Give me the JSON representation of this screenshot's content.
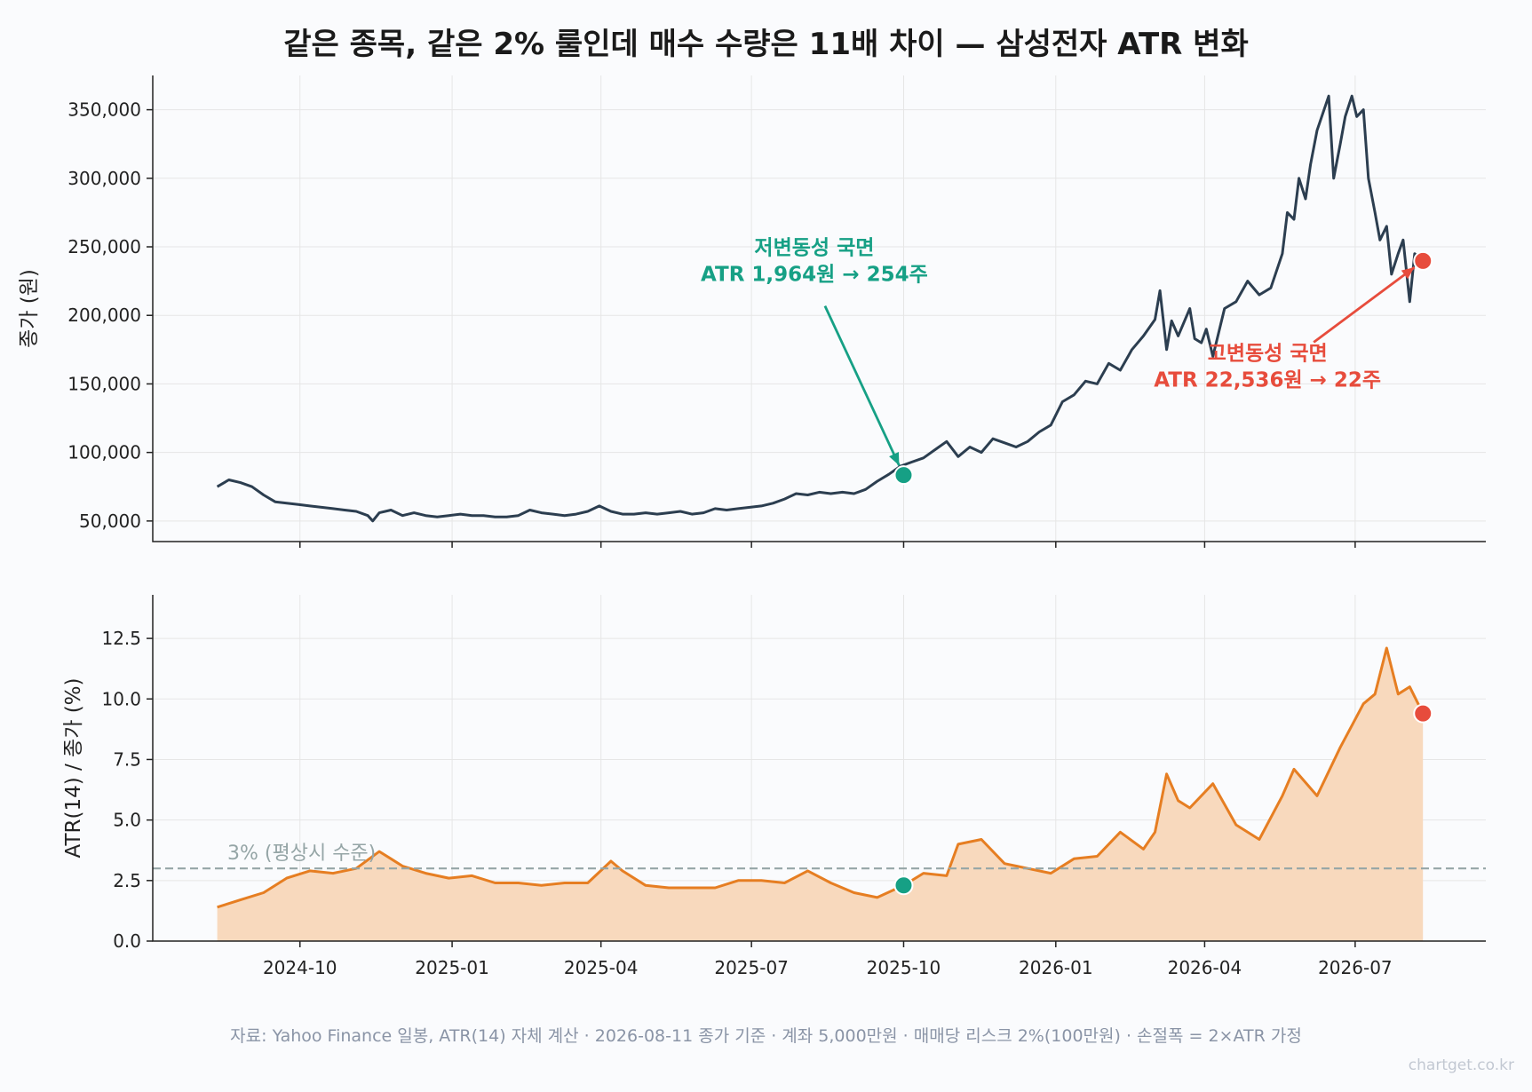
{
  "title": "같은 종목, 같은 2% 룰인데 매수 수량은 11배 차이 — 삼성전자 ATR 변화",
  "source_note": "자료: Yahoo Finance 일봉, ATR(14) 자체 계산 · 2026-08-11 종가 기준 · 계좌 5,000만원 · 매매당 리스크 2%(100만원) · 손절폭 = 2×ATR 가정",
  "watermark": "chartget.co.kr",
  "colors": {
    "price_line": "#2c3e50",
    "atr_line": "#e67e22",
    "atr_fill": "#f8d9bd",
    "low_vol": "#16a085",
    "high_vol": "#e74c3c",
    "reference_line": "#95a5a6"
  },
  "chart_data": [
    {
      "type": "line",
      "ylabel": "종가 (원)",
      "ylim": [
        35000,
        375000
      ],
      "yticks": [
        50000,
        100000,
        150000,
        200000,
        250000,
        300000,
        350000
      ],
      "ytick_labels": [
        "50,000",
        "100,000",
        "150,000",
        "200,000",
        "250,000",
        "300,000",
        "350,000"
      ],
      "grid": true,
      "series": [
        {
          "x": [
            "2024-08-12",
            "2024-08-19",
            "2024-08-26",
            "2024-09-02",
            "2024-09-09",
            "2024-09-16",
            "2024-09-23",
            "2024-09-30",
            "2024-10-07",
            "2024-10-14",
            "2024-10-21",
            "2024-10-28",
            "2024-11-04",
            "2024-11-11",
            "2024-11-14",
            "2024-11-18",
            "2024-11-25",
            "2024-12-02",
            "2024-12-09",
            "2024-12-16",
            "2024-12-23",
            "2024-12-30",
            "2025-01-06",
            "2025-01-13",
            "2025-01-20",
            "2025-01-27",
            "2025-02-03",
            "2025-02-10",
            "2025-02-17",
            "2025-02-24",
            "2025-03-03",
            "2025-03-10",
            "2025-03-17",
            "2025-03-24",
            "2025-03-31",
            "2025-04-07",
            "2025-04-14",
            "2025-04-21",
            "2025-04-28",
            "2025-05-05",
            "2025-05-12",
            "2025-05-19",
            "2025-05-26",
            "2025-06-02",
            "2025-06-09",
            "2025-06-16",
            "2025-06-23",
            "2025-06-30",
            "2025-07-07",
            "2025-07-14",
            "2025-07-21",
            "2025-07-28",
            "2025-08-04",
            "2025-08-11",
            "2025-08-18",
            "2025-08-25",
            "2025-09-01",
            "2025-09-08",
            "2025-09-15",
            "2025-09-22",
            "2025-09-29",
            "2025-10-06",
            "2025-10-13",
            "2025-10-20",
            "2025-10-27",
            "2025-11-03",
            "2025-11-10",
            "2025-11-17",
            "2025-11-24",
            "2025-12-01",
            "2025-12-08",
            "2025-12-15",
            "2025-12-22",
            "2025-12-29",
            "2026-01-05",
            "2026-01-12",
            "2026-01-19",
            "2026-01-26",
            "2026-02-02",
            "2026-02-09",
            "2026-02-16",
            "2026-02-23",
            "2026-03-02",
            "2026-03-05",
            "2026-03-09",
            "2026-03-12",
            "2026-03-16",
            "2026-03-23",
            "2026-03-26",
            "2026-03-30",
            "2026-04-02",
            "2026-04-06",
            "2026-04-13",
            "2026-04-20",
            "2026-04-27",
            "2026-05-04",
            "2026-05-11",
            "2026-05-18",
            "2026-05-21",
            "2026-05-25",
            "2026-05-28",
            "2026-06-01",
            "2026-06-04",
            "2026-06-08",
            "2026-06-15",
            "2026-06-18",
            "2026-06-22",
            "2026-06-25",
            "2026-06-29",
            "2026-07-02",
            "2026-07-06",
            "2026-07-09",
            "2026-07-13",
            "2026-07-16",
            "2026-07-20",
            "2026-07-23",
            "2026-07-27",
            "2026-07-30",
            "2026-08-03",
            "2026-08-06",
            "2026-08-11"
          ],
          "y": [
            75000,
            80000,
            78000,
            75000,
            69000,
            64000,
            63000,
            62000,
            61000,
            60000,
            59000,
            58000,
            57000,
            54000,
            50000,
            56000,
            58000,
            54000,
            56000,
            54000,
            53000,
            54000,
            55000,
            54000,
            54000,
            53000,
            53000,
            54000,
            58000,
            56000,
            55000,
            54000,
            55000,
            57000,
            61000,
            57000,
            55000,
            55000,
            56000,
            55000,
            56000,
            57000,
            55000,
            56000,
            59000,
            58000,
            59000,
            60000,
            61000,
            63000,
            66000,
            70000,
            69000,
            71000,
            70000,
            71000,
            70000,
            73000,
            79000,
            84000,
            90000,
            93000,
            96000,
            102000,
            108000,
            97000,
            104000,
            100000,
            110000,
            107000,
            104000,
            108000,
            115000,
            120000,
            137000,
            142000,
            152000,
            150000,
            165000,
            160000,
            175000,
            185000,
            197000,
            218000,
            175000,
            196000,
            185000,
            205000,
            183000,
            180000,
            190000,
            170000,
            205000,
            210000,
            225000,
            215000,
            220000,
            245000,
            275000,
            270000,
            300000,
            285000,
            310000,
            335000,
            360000,
            300000,
            325000,
            345000,
            360000,
            345000,
            350000,
            300000,
            275000,
            255000,
            265000,
            230000,
            245000,
            255000,
            210000,
            245000,
            239700
          ],
          "markers": [
            {
              "x": "2025-10-01",
              "y": 83500,
              "color_key": "low_vol"
            },
            {
              "x": "2026-08-11",
              "y": 239700,
              "color_key": "high_vol"
            }
          ]
        }
      ],
      "annotations": [
        {
          "line1": "저변동성 국면",
          "line2": "ATR 1,964원 → 254주",
          "color_key": "low_vol",
          "x": "2025-08-08",
          "y": 225000,
          "arrow_to": {
            "x": "2025-10-01",
            "y": 83500
          }
        },
        {
          "line1": "고변동성 국면",
          "line2": "ATR 22,536원 → 22주",
          "color_key": "high_vol",
          "x": "2026-05-09",
          "y": 148000,
          "arrow_to": {
            "x": "2026-08-11",
            "y": 239700
          }
        }
      ]
    },
    {
      "type": "area",
      "ylabel": "ATR(14) / 종가 (%)",
      "ylim": [
        0,
        14.3
      ],
      "yticks": [
        0,
        2.5,
        5,
        7.5,
        10,
        12.5
      ],
      "ytick_labels": [
        "0.0",
        "2.5",
        "5.0",
        "7.5",
        "10.0",
        "12.5"
      ],
      "xticks": [
        "2024-10-01",
        "2025-01-01",
        "2025-04-01",
        "2025-07-01",
        "2025-10-01",
        "2026-01-01",
        "2026-04-01",
        "2026-07-01"
      ],
      "xtick_labels": [
        "2024-10",
        "2025-01",
        "2025-04",
        "2025-07",
        "2025-10",
        "2026-01",
        "2026-04",
        "2026-07"
      ],
      "grid": true,
      "reference_line": {
        "y": 3.0,
        "label": "3% (평상시 수준)"
      },
      "series": [
        {
          "x": [
            "2024-08-12",
            "2024-08-26",
            "2024-09-09",
            "2024-09-23",
            "2024-10-07",
            "2024-10-21",
            "2024-11-04",
            "2024-11-18",
            "2024-11-25",
            "2024-12-02",
            "2024-12-16",
            "2024-12-30",
            "2025-01-13",
            "2025-01-27",
            "2025-02-10",
            "2025-02-24",
            "2025-03-10",
            "2025-03-24",
            "2025-04-07",
            "2025-04-14",
            "2025-04-28",
            "2025-05-12",
            "2025-05-26",
            "2025-06-09",
            "2025-06-23",
            "2025-07-07",
            "2025-07-21",
            "2025-08-04",
            "2025-08-18",
            "2025-09-01",
            "2025-09-15",
            "2025-10-01",
            "2025-10-13",
            "2025-10-27",
            "2025-11-03",
            "2025-11-17",
            "2025-12-01",
            "2025-12-15",
            "2025-12-29",
            "2026-01-12",
            "2026-01-26",
            "2026-02-09",
            "2026-02-23",
            "2026-03-02",
            "2026-03-09",
            "2026-03-16",
            "2026-03-23",
            "2026-04-06",
            "2026-04-20",
            "2026-05-04",
            "2026-05-18",
            "2026-05-25",
            "2026-06-08",
            "2026-06-22",
            "2026-07-06",
            "2026-07-13",
            "2026-07-20",
            "2026-07-27",
            "2026-08-03",
            "2026-08-11"
          ],
          "y": [
            1.4,
            1.7,
            2.0,
            2.6,
            2.9,
            2.8,
            3.0,
            3.7,
            3.4,
            3.1,
            2.8,
            2.6,
            2.7,
            2.4,
            2.4,
            2.3,
            2.4,
            2.4,
            3.3,
            2.9,
            2.3,
            2.2,
            2.2,
            2.2,
            2.5,
            2.5,
            2.4,
            2.9,
            2.4,
            2.0,
            1.8,
            2.3,
            2.8,
            2.7,
            4.0,
            4.2,
            3.2,
            3.0,
            2.8,
            3.4,
            3.5,
            4.5,
            3.8,
            4.5,
            6.9,
            5.8,
            5.5,
            6.5,
            4.8,
            4.2,
            6.0,
            7.1,
            6.0,
            8.0,
            9.8,
            10.2,
            12.1,
            10.2,
            10.5,
            9.4
          ],
          "markers": [
            {
              "x": "2025-10-01",
              "y": 2.3,
              "color_key": "low_vol"
            },
            {
              "x": "2026-08-11",
              "y": 9.4,
              "color_key": "high_vol"
            }
          ]
        }
      ]
    }
  ]
}
